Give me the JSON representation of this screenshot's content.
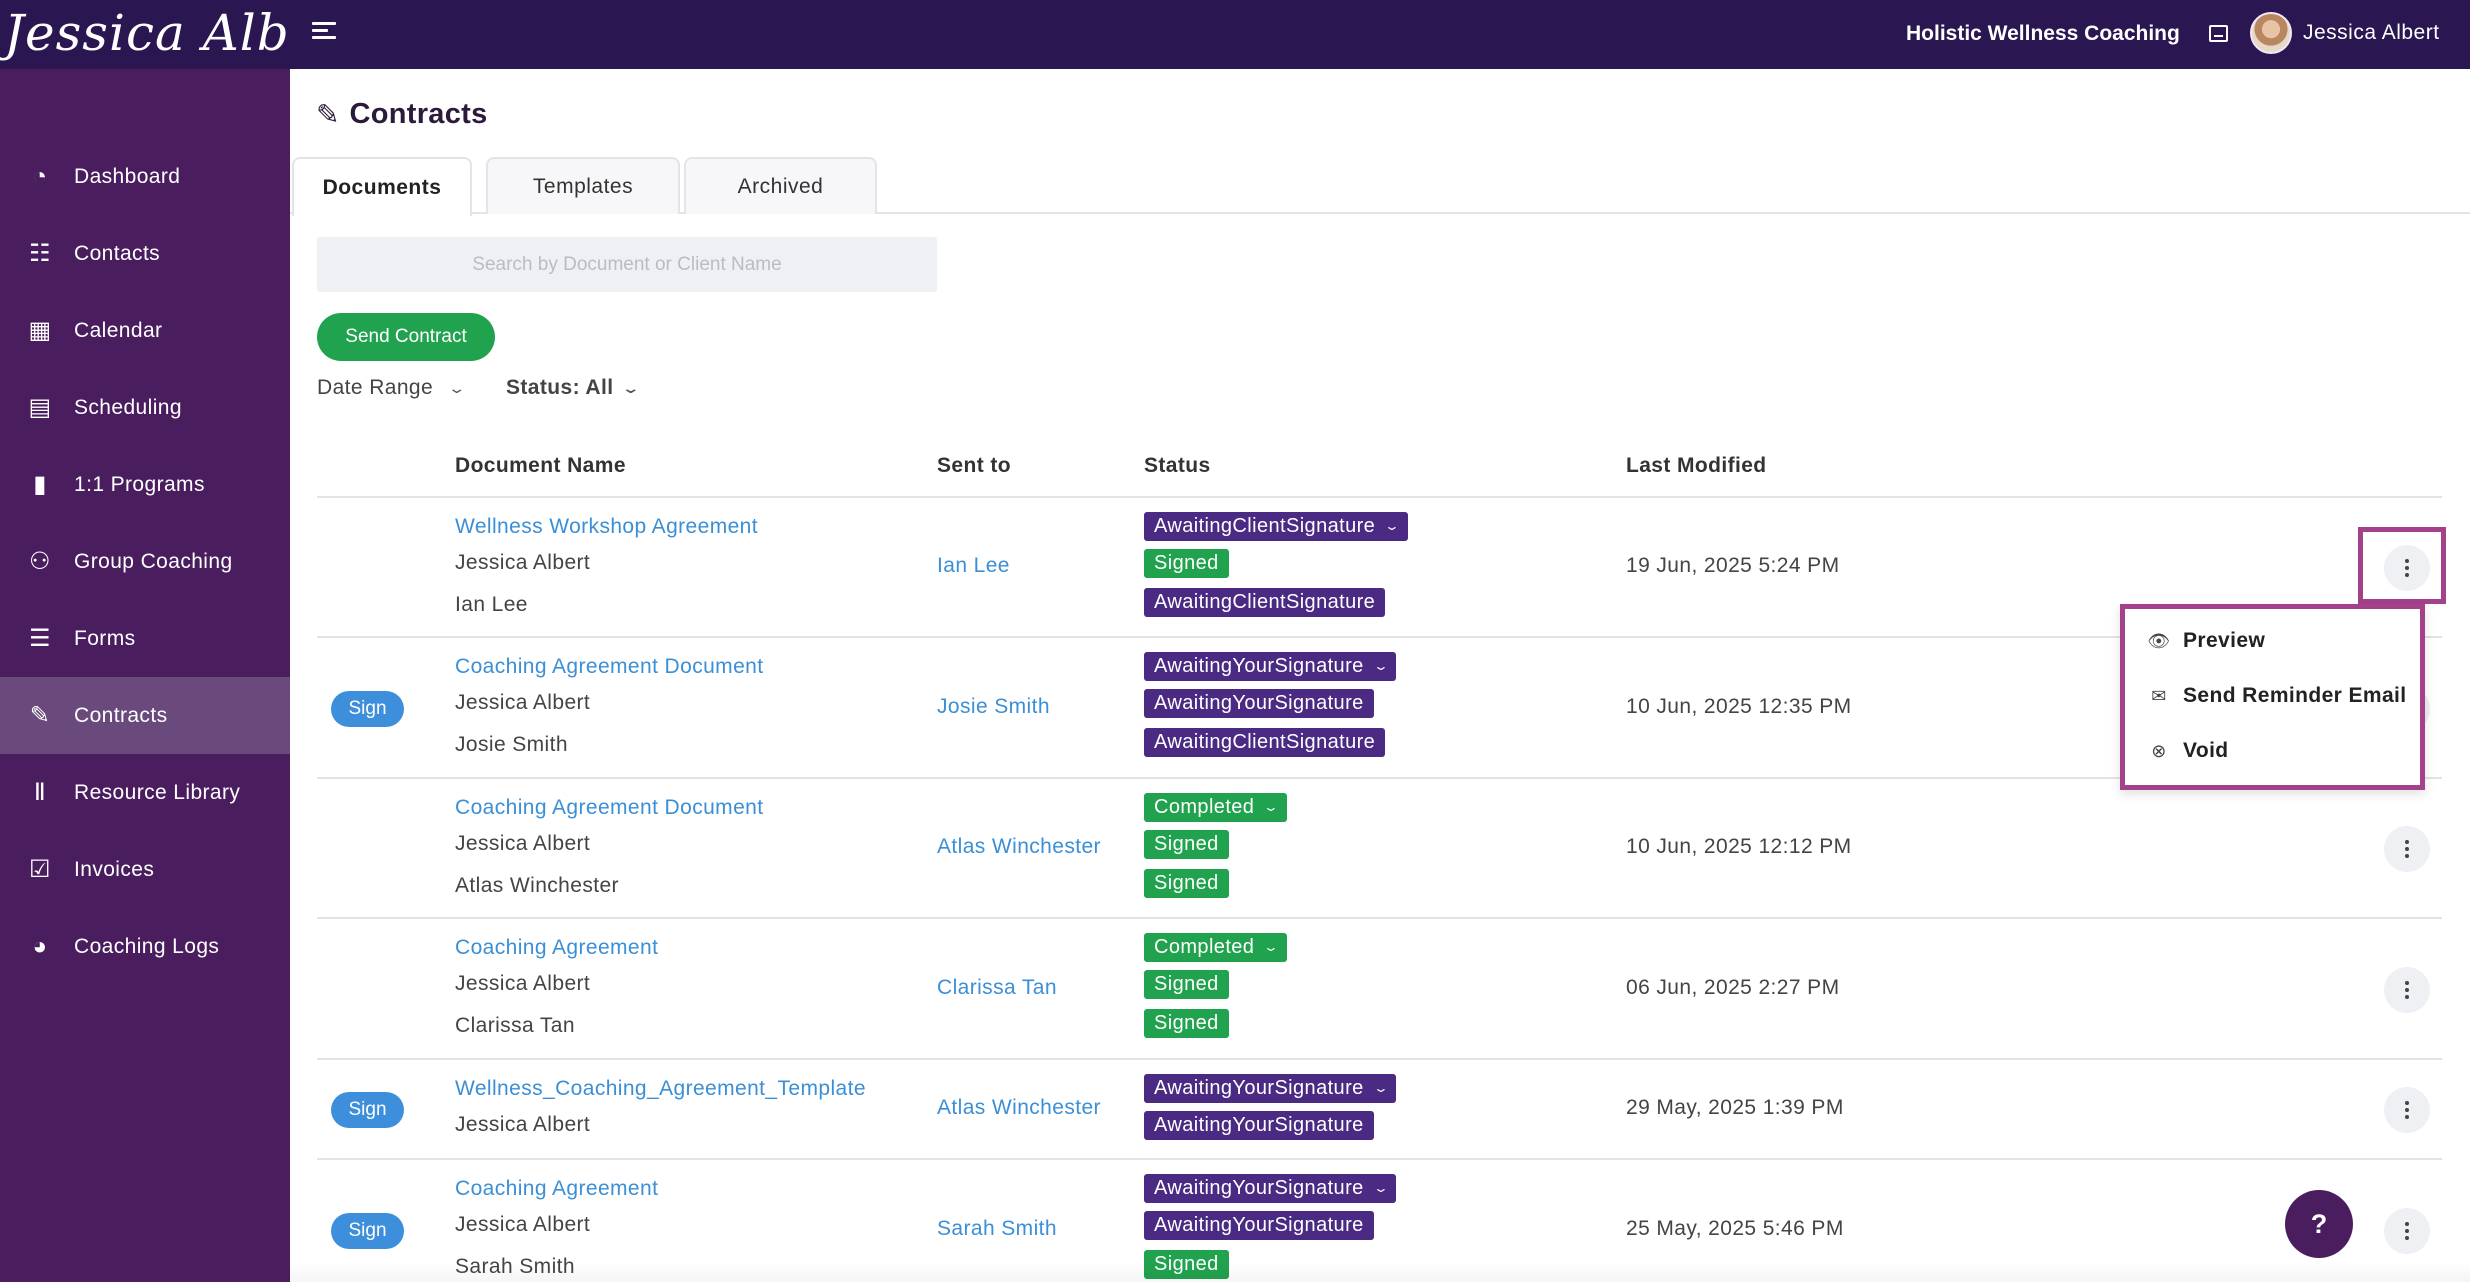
{
  "header": {
    "logo_text": "Jessica Albert",
    "brand": "Holistic Wellness Coaching",
    "user_name": "Jessica Albert",
    "icons": [
      "menu-icon",
      "inbox-icon",
      "avatar"
    ]
  },
  "sidebar": {
    "items": [
      {
        "label": "Dashboard",
        "icon": "dashboard-icon"
      },
      {
        "label": "Contacts",
        "icon": "contacts-icon"
      },
      {
        "label": "Calendar",
        "icon": "calendar-icon"
      },
      {
        "label": "Scheduling",
        "icon": "scheduling-icon"
      },
      {
        "label": "1:1 Programs",
        "icon": "book-icon"
      },
      {
        "label": "Group Coaching",
        "icon": "group-icon"
      },
      {
        "label": "Forms",
        "icon": "list-icon"
      },
      {
        "label": "Contracts",
        "icon": "contract-icon",
        "active": true
      },
      {
        "label": "Resource Library",
        "icon": "library-icon"
      },
      {
        "label": "Invoices",
        "icon": "invoice-icon"
      },
      {
        "label": "Coaching Logs",
        "icon": "clock-icon"
      }
    ]
  },
  "page": {
    "title": "Contracts",
    "tabs": [
      {
        "label": "Documents",
        "active": true
      },
      {
        "label": "Templates"
      },
      {
        "label": "Archived"
      }
    ],
    "search_placeholder": "Search by Document or Client Name",
    "send_button": "Send Contract",
    "filters": {
      "date_range": "Date Range",
      "status": "Status: All"
    }
  },
  "table": {
    "columns": [
      "Document Name",
      "Sent to",
      "Status",
      "Last Modified"
    ],
    "rows": [
      {
        "sign": "",
        "doc": "Wellness Workshop Agreement",
        "names": [
          "Jessica Albert",
          "Ian Lee"
        ],
        "sent_to": "Ian Lee",
        "statuses": [
          {
            "label": "AwaitingClientSignature",
            "color": "purple",
            "dropdown": true
          },
          {
            "label": "Signed",
            "color": "green"
          },
          {
            "label": "AwaitingClientSignature",
            "color": "purple"
          }
        ],
        "modified": "19 Jun, 2025 5:24 PM"
      },
      {
        "sign": "Sign",
        "doc": "Coaching Agreement Document",
        "names": [
          "Jessica Albert",
          "Josie Smith"
        ],
        "sent_to": "Josie Smith",
        "statuses": [
          {
            "label": "AwaitingYourSignature",
            "color": "purple",
            "dropdown": true
          },
          {
            "label": "AwaitingYourSignature",
            "color": "purple"
          },
          {
            "label": "AwaitingClientSignature",
            "color": "purple"
          }
        ],
        "modified": "10 Jun, 2025 12:35 PM"
      },
      {
        "sign": "",
        "doc": "Coaching Agreement Document",
        "names": [
          "Jessica Albert",
          "Atlas Winchester"
        ],
        "sent_to": "Atlas Winchester",
        "statuses": [
          {
            "label": "Completed",
            "color": "green",
            "dropdown": true
          },
          {
            "label": "Signed",
            "color": "green"
          },
          {
            "label": "Signed",
            "color": "green"
          }
        ],
        "modified": "10 Jun, 2025 12:12 PM"
      },
      {
        "sign": "",
        "doc": "Coaching Agreement",
        "names": [
          "Jessica Albert",
          "Clarissa Tan"
        ],
        "sent_to": "Clarissa Tan",
        "statuses": [
          {
            "label": "Completed",
            "color": "green",
            "dropdown": true
          },
          {
            "label": "Signed",
            "color": "green"
          },
          {
            "label": "Signed",
            "color": "green"
          }
        ],
        "modified": "06 Jun, 2025 2:27 PM"
      },
      {
        "sign": "Sign",
        "doc": "Wellness_Coaching_Agreement_Template",
        "names": [
          "Jessica Albert"
        ],
        "sent_to": "Atlas Winchester",
        "statuses": [
          {
            "label": "AwaitingYourSignature",
            "color": "purple",
            "dropdown": true
          },
          {
            "label": "AwaitingYourSignature",
            "color": "purple"
          }
        ],
        "modified": "29 May, 2025 1:39 PM"
      },
      {
        "sign": "Sign",
        "doc": "Coaching Agreement",
        "names": [
          "Jessica Albert",
          "Sarah Smith"
        ],
        "sent_to": "Sarah Smith",
        "statuses": [
          {
            "label": "AwaitingYourSignature",
            "color": "purple",
            "dropdown": true
          },
          {
            "label": "AwaitingYourSignature",
            "color": "purple"
          },
          {
            "label": "Signed",
            "color": "green"
          }
        ],
        "modified": "25 May, 2025 5:46 PM"
      }
    ]
  },
  "row_menu": {
    "items": [
      {
        "label": "Preview",
        "icon": "eye-icon"
      },
      {
        "label": "Send Reminder Email",
        "icon": "mail-icon"
      },
      {
        "label": "Void",
        "icon": "void-icon"
      }
    ]
  },
  "help_button": "?",
  "colors": {
    "topbar": "#2a1650",
    "sidebar": "#4a1e5e",
    "sidebar_active": "#6a4a7c",
    "link": "#3b8fd6",
    "badge_purple": "#4a2a82",
    "badge_green": "#21a24e",
    "highlight": "#a3418a"
  }
}
